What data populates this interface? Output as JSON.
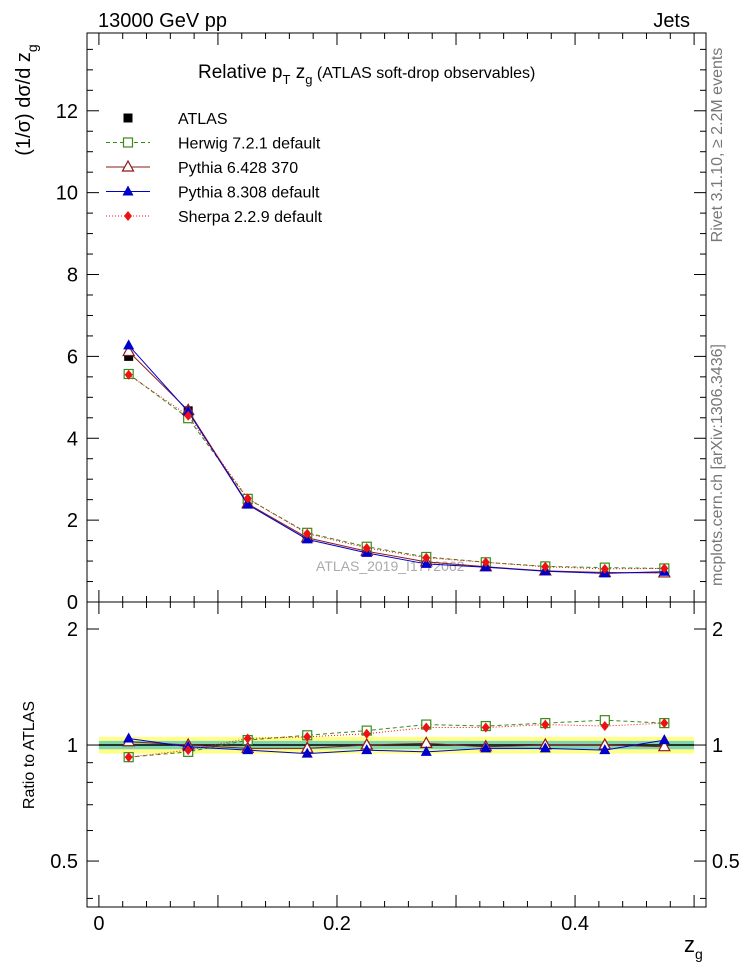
{
  "header": {
    "energy_label": "13000 GeV pp",
    "process_label": "Jets"
  },
  "side_labels": {
    "rivet": "Rivet 3.1.10, ≥ 2.2M events",
    "mcplots": "mcplots.cern.ch [arXiv:1306.3436]"
  },
  "chart_data": [
    {
      "type": "line",
      "panel": "main",
      "title": "Relative p T z g (ATLAS soft-drop observables)",
      "title_parts": {
        "pre": "Relative p",
        "sub1": "T",
        "mid": " z",
        "sub2": "g",
        "post": " (ATLAS soft-drop observables)"
      },
      "ylabel": "(1/σ) dσ/d z g",
      "ylabel_parts": {
        "main": "(1/σ) dσ/d z",
        "sub": "g"
      },
      "watermark": "ATLAS_2019_I1772062",
      "xlim": [
        -0.01,
        0.51
      ],
      "ylim": [
        0,
        13.9
      ],
      "yticks": [
        0,
        2,
        4,
        6,
        8,
        10,
        12
      ],
      "x": [
        0.025,
        0.075,
        0.125,
        0.175,
        0.225,
        0.275,
        0.325,
        0.375,
        0.425,
        0.475
      ],
      "legend_position": "top-left",
      "series": [
        {
          "name": "ATLAS",
          "color": "#000000",
          "marker": "square",
          "values": [
            6.0,
            4.67,
            2.45,
            1.6,
            1.24,
            0.97,
            0.87,
            0.76,
            0.72,
            0.72
          ]
        },
        {
          "name": "Herwig 7.2.1 default",
          "color": "#3a8a1a",
          "marker": "open-square",
          "dash": "4,3",
          "values": [
            5.57,
            4.49,
            2.52,
            1.69,
            1.35,
            1.1,
            0.97,
            0.87,
            0.84,
            0.82
          ]
        },
        {
          "name": "Pythia 6.428 370",
          "color": "#8b1a1a",
          "marker": "open-triangle",
          "dash": "",
          "values": [
            6.12,
            4.68,
            2.4,
            1.57,
            1.24,
            0.98,
            0.86,
            0.76,
            0.72,
            0.71
          ]
        },
        {
          "name": "Pythia 8.308 default",
          "color": "#0000cc",
          "marker": "triangle",
          "dash": "",
          "values": [
            6.27,
            4.65,
            2.38,
            1.53,
            1.2,
            0.93,
            0.85,
            0.75,
            0.7,
            0.74
          ]
        },
        {
          "name": "Sherpa 2.2.9 default",
          "color": "#ee1111",
          "marker": "diamond",
          "dash": "1,2",
          "values": [
            5.55,
            4.55,
            2.53,
            1.67,
            1.32,
            1.08,
            0.97,
            0.86,
            0.81,
            0.82
          ]
        }
      ]
    },
    {
      "type": "line",
      "panel": "ratio",
      "ylabel": "Ratio to ATLAS",
      "xlabel": "z g",
      "xlabel_parts": {
        "main": "z",
        "sub": "g"
      },
      "xlim": [
        -0.01,
        0.51
      ],
      "xticks": [
        0,
        0.2,
        0.4
      ],
      "ylim": [
        0.38,
        2.35
      ],
      "yticks": [
        0.5,
        1,
        2
      ],
      "ytick_labels": [
        "0.5",
        "1",
        "2"
      ],
      "band": {
        "inner_color": "#80d4b0",
        "outer_color": "#ffff88",
        "inner_half_width": 0.025,
        "outer_half_width": 0.05
      },
      "x": [
        0.025,
        0.075,
        0.125,
        0.175,
        0.225,
        0.275,
        0.325,
        0.375,
        0.425,
        0.475
      ],
      "series": [
        {
          "name": "Herwig 7.2.1 default",
          "color": "#3a8a1a",
          "marker": "open-square",
          "dash": "4,3",
          "values": [
            0.93,
            0.96,
            1.03,
            1.06,
            1.09,
            1.13,
            1.12,
            1.14,
            1.16,
            1.14
          ]
        },
        {
          "name": "Pythia 6.428 370",
          "color": "#8b1a1a",
          "marker": "open-triangle",
          "dash": "",
          "values": [
            1.02,
            1.0,
            0.98,
            0.98,
            1.0,
            1.01,
            0.99,
            1.0,
            1.0,
            0.99
          ]
        },
        {
          "name": "Pythia 8.308 default",
          "color": "#0000cc",
          "marker": "triangle",
          "dash": "",
          "values": [
            1.04,
            0.99,
            0.97,
            0.95,
            0.97,
            0.96,
            0.98,
            0.98,
            0.97,
            1.03
          ]
        },
        {
          "name": "Sherpa 2.2.9 default",
          "color": "#ee1111",
          "marker": "diamond",
          "dash": "1,2",
          "values": [
            0.93,
            0.97,
            1.04,
            1.05,
            1.07,
            1.11,
            1.11,
            1.13,
            1.12,
            1.14
          ]
        }
      ]
    }
  ]
}
